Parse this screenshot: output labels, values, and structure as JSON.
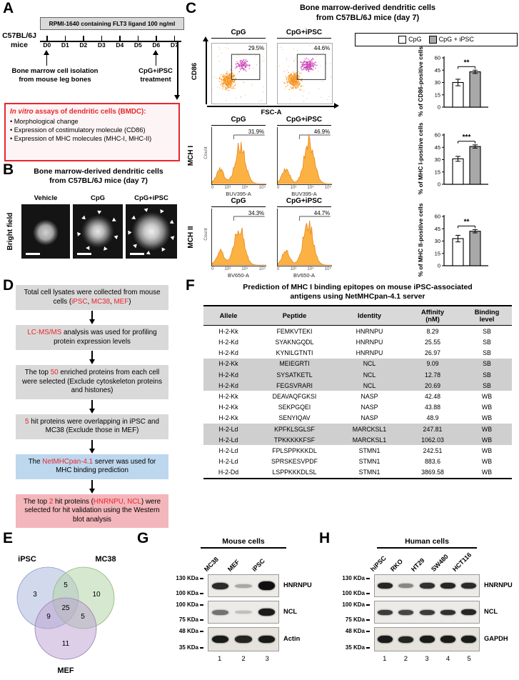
{
  "colors": {
    "red": "#e8262d",
    "gray_box": "#d9d9d9",
    "blue_box": "#bdd7ee",
    "pink_box": "#f3b6bb",
    "bar_gray": "#a8a8a8",
    "hist_orange": "#fcb243"
  },
  "panelA": {
    "label": "A",
    "mice": "C57BL/6J\nmice",
    "media": "RPMI-1640 containing FLT3 ligand 100 ng/ml",
    "days": [
      "D0",
      "D1",
      "D2",
      "D3",
      "D4",
      "D5",
      "D6",
      "D7"
    ],
    "isolation": "Bone marrow cell isolation\nfrom mouse leg bones",
    "treatment": "CpG+iPSC\ntreatment",
    "assay_title": [
      {
        "t": "In vitro",
        "red": true,
        "i": true
      },
      {
        "t": " assays of dendritic cells (BMDC):",
        "red": true
      }
    ],
    "assays": [
      "• Morphological change",
      "• Expression of costimulatory molecule (CD86)",
      "• Expression of MHC molecules (MHC-I, MHC-II)"
    ]
  },
  "panelB": {
    "label": "B",
    "title": "Bone marrow-derived dendritic cells\nfrom C57BL/6J mice (day 7)",
    "side_label": "Bright field",
    "conditions": [
      "Vehicle",
      "CpG",
      "CpG+iPSC"
    ]
  },
  "panelC": {
    "label": "C",
    "title": "Bone marrow-derived dendritic cells\nfrom C57BL/6J mice (day 7)",
    "flow": {
      "cond1": "CpG",
      "cond2": "CpG+iPSC",
      "pct1": "29.5%",
      "pct2": "44.6%",
      "y_axis": "CD86",
      "x_axis": "FSC-A"
    },
    "legend": {
      "item1": "CpG",
      "item2": "CpG + iPSC"
    },
    "mhc1": {
      "row_label": "MCH I",
      "cond1": "CpG",
      "cond2": "CpG+iPSC",
      "pct1": "31.9%",
      "pct2": "46.9%",
      "x_axis": "BUV395-A",
      "y_axis": "Count",
      "ticks": [
        "0",
        "10³",
        "10⁴",
        "10⁵"
      ]
    },
    "mhc2": {
      "row_label": "MCH II",
      "cond1": "CpG",
      "cond2": "CpG+iPSC",
      "pct1": "34.3%",
      "pct2": "44.7%",
      "x_axis": "BV650-A",
      "y_axis": "Count",
      "ticks": [
        "0",
        "10³",
        "10⁴",
        "10⁵"
      ]
    },
    "chart_data": [
      {
        "type": "bar",
        "title": "% of CD86-positive cells",
        "categories": [
          "CpG",
          "CpG + iPSC"
        ],
        "values": [
          30,
          43
        ],
        "errors": [
          4,
          2
        ],
        "sig": "**",
        "ylim": [
          0,
          60
        ],
        "yticks": [
          0,
          15,
          30,
          45,
          60
        ],
        "ylabel1": "% of CD86-",
        "ylabel2": "positive cells"
      },
      {
        "type": "bar",
        "title": "% of MHC I-positive cells",
        "categories": [
          "CpG",
          "CpG + iPSC"
        ],
        "values": [
          31,
          46
        ],
        "errors": [
          3,
          2
        ],
        "sig": "***",
        "ylim": [
          0,
          60
        ],
        "yticks": [
          0,
          15,
          30,
          45,
          60
        ],
        "ylabel1": "% of MHC I-",
        "ylabel2": "positive cells"
      },
      {
        "type": "bar",
        "title": "% of MHC II-positive cells",
        "categories": [
          "CpG",
          "CpG + iPSC"
        ],
        "values": [
          33,
          42
        ],
        "errors": [
          4,
          2
        ],
        "sig": "**",
        "ylim": [
          0,
          60
        ],
        "yticks": [
          0,
          15,
          30,
          45,
          60
        ],
        "ylabel1": "% of MHC II-",
        "ylabel2": "positive cells"
      }
    ]
  },
  "panelD": {
    "label": "D",
    "boxes": [
      {
        "bg": "gray",
        "segments": [
          {
            "t": "Total cell lysates were collected from mouse cells ("
          },
          {
            "t": "iPSC",
            "red": true
          },
          {
            "t": ", "
          },
          {
            "t": "MC38",
            "red": true
          },
          {
            "t": ", "
          },
          {
            "t": "MEF",
            "red": true
          },
          {
            "t": ")"
          }
        ]
      },
      {
        "bg": "gray",
        "segments": [
          {
            "t": "LC-MS/MS",
            "red": true
          },
          {
            "t": " analysis was used for profiling protein expression levels"
          }
        ]
      },
      {
        "bg": "gray",
        "segments": [
          {
            "t": "The top "
          },
          {
            "t": "50",
            "red": true
          },
          {
            "t": " enriched proteins from each cell were selected (Exclude cytoskeleton proteins and histones)"
          }
        ]
      },
      {
        "bg": "gray",
        "segments": [
          {
            "t": "5",
            "red": true
          },
          {
            "t": " hit proteins were overlapping in iPSC and MC38 (Exclude those in MEF)"
          }
        ]
      },
      {
        "bg": "blue",
        "segments": [
          {
            "t": "The "
          },
          {
            "t": "NetMHCpan-4.1",
            "red": true
          },
          {
            "t": " server was used for MHC binding prediction"
          }
        ]
      },
      {
        "bg": "pink",
        "segments": [
          {
            "t": "The top "
          },
          {
            "t": "2",
            "red": true
          },
          {
            "t": " hit proteins ("
          },
          {
            "t": "HNRNPU, NCL",
            "red": true
          },
          {
            "t": ") were selected for hit validation using the Western blot analysis"
          }
        ]
      }
    ]
  },
  "panelE": {
    "label": "E",
    "set1": "iPSC",
    "set2": "MC38",
    "set3": "MEF",
    "n1": "3",
    "n12": "5",
    "n2": "10",
    "n13": "9",
    "n123": "25",
    "n23": "5",
    "n3": "11"
  },
  "panelF": {
    "label": "F",
    "title": "Prediction of MHC I binding epitopes on mouse iPSC-associated\nantigens using NetMHCpan-4.1 server",
    "headers": [
      "Allele",
      "Peptide",
      "Identity",
      "Affinity\n(nM)",
      "Binding\nlevel"
    ],
    "rows": [
      {
        "allele": "H-2-Kk",
        "peptide": "FEMKVTEKI",
        "identity": "HNRNPU",
        "affinity": "8.29",
        "level": "SB",
        "shaded": false
      },
      {
        "allele": "H-2-Kd",
        "peptide": "SYAKNGQDL",
        "identity": "HNRNPU",
        "affinity": "25.55",
        "level": "SB",
        "shaded": false
      },
      {
        "allele": "H-2-Kd",
        "peptide": "KYNILGTNTI",
        "identity": "HNRNPU",
        "affinity": "26.97",
        "level": "SB",
        "shaded": false
      },
      {
        "allele": "H-2-Kk",
        "peptide": "MEIEGRTI",
        "identity": "NCL",
        "affinity": "9.09",
        "level": "SB",
        "shaded": true
      },
      {
        "allele": "H-2-Kd",
        "peptide": "SYSATKETL",
        "identity": "NCL",
        "affinity": "12.78",
        "level": "SB",
        "shaded": true
      },
      {
        "allele": "H-2-Kd",
        "peptide": "FEGSVRARI",
        "identity": "NCL",
        "affinity": "20.69",
        "level": "SB",
        "shaded": true
      },
      {
        "allele": "H-2-Kk",
        "peptide": "DEAVAQFGKSI",
        "identity": "NASP",
        "affinity": "42.48",
        "level": "WB",
        "shaded": false
      },
      {
        "allele": "H-2-Kk",
        "peptide": "SEKPGQEI",
        "identity": "NASP",
        "affinity": "43.88",
        "level": "WB",
        "shaded": false
      },
      {
        "allele": "H-2-Kk",
        "peptide": "SENYIQAV",
        "identity": "NASP",
        "affinity": "48.9",
        "level": "WB",
        "shaded": false
      },
      {
        "allele": "H-2-Ld",
        "peptide": "KPFKLSGLSF",
        "identity": "MARCKSL1",
        "affinity": "247.81",
        "level": "WB",
        "shaded": true
      },
      {
        "allele": "H-2-Ld",
        "peptide": "TPKKKKKFSF",
        "identity": "MARCKSL1",
        "affinity": "1062.03",
        "level": "WB",
        "shaded": true
      },
      {
        "allele": "H-2-Ld",
        "peptide": "FPLSPPKKKDL",
        "identity": "STMN1",
        "affinity": "242.51",
        "level": "WB",
        "shaded": false
      },
      {
        "allele": "H-2-Ld",
        "peptide": "SPRSKESVPDF",
        "identity": "STMN1",
        "affinity": "883.6",
        "level": "WB",
        "shaded": false
      },
      {
        "allele": "H-2-Dd",
        "peptide": "LSPPKKKDLSL",
        "identity": "STMN1",
        "affinity": "3869.58",
        "level": "WB",
        "shaded": false
      }
    ]
  },
  "panelG": {
    "label": "G",
    "title": "Mouse cells",
    "lanes": [
      "MC38",
      "MEF",
      "iPSC"
    ],
    "lane_numbers": [
      "1",
      "2",
      "3"
    ],
    "blots": [
      {
        "name": "HNRNPU",
        "marker_top": "130 KDa",
        "marker_bottom": "100 KDa",
        "bands": [
          0.88,
          0.3,
          1
        ],
        "heights": [
          9,
          5,
          12
        ]
      },
      {
        "name": "NCL",
        "marker_top": "100 KDa",
        "marker_bottom": "75 KDa",
        "bands": [
          0.55,
          0.2,
          0.95
        ],
        "heights": [
          7,
          4,
          10
        ]
      },
      {
        "name": "Actin",
        "marker_top": "48 KDa",
        "marker_bottom": "35 KDa",
        "bands": [
          0.95,
          0.9,
          0.95
        ],
        "heights": [
          10,
          10,
          10
        ]
      }
    ]
  },
  "panelH": {
    "label": "H",
    "title": "Human cells",
    "lanes": [
      "hiPSC",
      "RKO",
      "HT29",
      "SW480",
      "HCT116"
    ],
    "lane_numbers": [
      "1",
      "2",
      "3",
      "4",
      "5"
    ],
    "blots": [
      {
        "name": "HNRNPU",
        "marker_top": "130 KDa",
        "marker_bottom": "100 KDa",
        "bands": [
          0.9,
          0.45,
          0.85,
          0.9,
          0.88
        ],
        "heights": [
          8,
          6,
          8,
          8,
          8
        ]
      },
      {
        "name": "NCL",
        "marker_top": "100 KDa",
        "marker_bottom": "75 KDa",
        "bands": [
          0.8,
          0.75,
          0.8,
          0.85,
          0.9
        ],
        "heights": [
          7,
          7,
          7,
          7,
          8
        ]
      },
      {
        "name": "GAPDH",
        "marker_top": "48 KDa",
        "marker_bottom": "35 KDa",
        "bands": [
          0.95,
          0.9,
          0.95,
          0.95,
          0.95
        ],
        "heights": [
          10,
          9,
          10,
          10,
          10
        ]
      }
    ]
  }
}
